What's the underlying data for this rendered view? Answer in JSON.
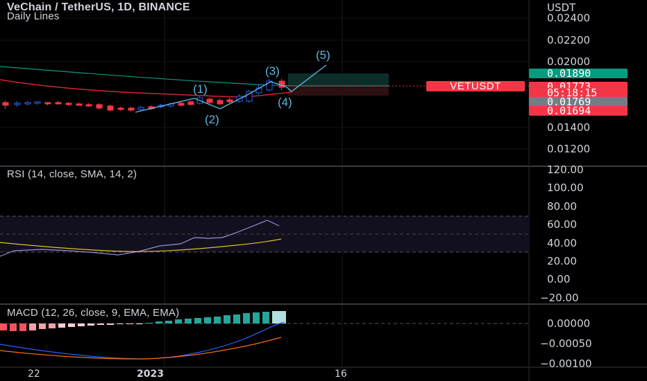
{
  "header": {
    "symbol_line": "VeChain / TetherUS, 1D, BINANCE",
    "sub_line": "Daily Lines",
    "currency": "USDT"
  },
  "price_scale": {
    "labels": [
      "0.02400",
      "0.02200",
      "0.02000",
      "0.01400",
      "0.01200"
    ]
  },
  "price_tags": {
    "upper": {
      "value": "0.01890",
      "color": "#089981"
    },
    "current": {
      "value": "0.01773",
      "color": "#f23645"
    },
    "countdown": {
      "value": "05:18:15",
      "color": "#f23645"
    },
    "gray": {
      "value": "0.01769",
      "color": "#787b86"
    },
    "lower": {
      "value": "0.01694",
      "color": "#f23645"
    },
    "symbol": "VETUSDT"
  },
  "waves": {
    "w1": "(1)",
    "w2": "(2)",
    "w3": "(3)",
    "w4": "(4)",
    "w5": "(5)"
  },
  "rsi": {
    "title": "RSI (14, close, SMA, 14, 2)",
    "scale": [
      "120.00",
      "100.00",
      "80.00",
      "60.00",
      "40.00",
      "20.00",
      "0.00",
      "−20.00"
    ]
  },
  "macd": {
    "title": "MACD (12, 26, close, 9, EMA, EMA)",
    "scale": [
      "0.00000",
      "−0.00050",
      "−0.00100"
    ]
  },
  "time_axis": {
    "labels": [
      "22",
      "2023",
      "16"
    ]
  },
  "colors": {
    "up": "#2962ff",
    "down": "#f23645",
    "background": "#000000",
    "ma_green": "#089981",
    "ma_red": "#f23645",
    "rsi_line": "#b2a5e6",
    "rsi_ma": "#e0c229",
    "macd_line": "#2962ff",
    "signal_line": "#ff6d00"
  }
}
